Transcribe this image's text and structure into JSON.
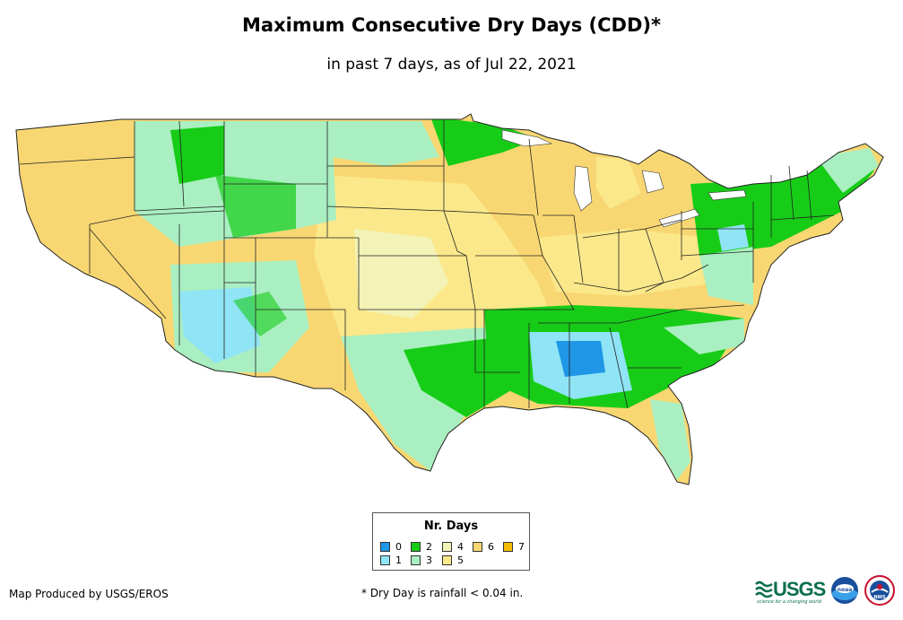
{
  "title": "Maximum Consecutive Dry Days (CDD)*",
  "subtitle": "in past 7 days, as of Jul 22, 2021",
  "legend": {
    "title": "Nr. Days",
    "items": [
      {
        "label": "0",
        "color": "#1f96e6"
      },
      {
        "label": "1",
        "color": "#8fe4f5"
      },
      {
        "label": "2",
        "color": "#17cc17"
      },
      {
        "label": "3",
        "color": "#a9efc1"
      },
      {
        "label": "4",
        "color": "#f3f3b8"
      },
      {
        "label": "5",
        "color": "#fbe88a"
      },
      {
        "label": "6",
        "color": "#f8d772"
      },
      {
        "label": "7",
        "color": "#f6bc05"
      }
    ]
  },
  "credit": "Map Produced by USGS/EROS",
  "footnote": "* Dry Day is rainfall < 0.04 in.",
  "logos": {
    "usgs": "USGS",
    "usgs_tagline": "science for a changing world",
    "noaa": "noaa",
    "nws": "NWS"
  }
}
